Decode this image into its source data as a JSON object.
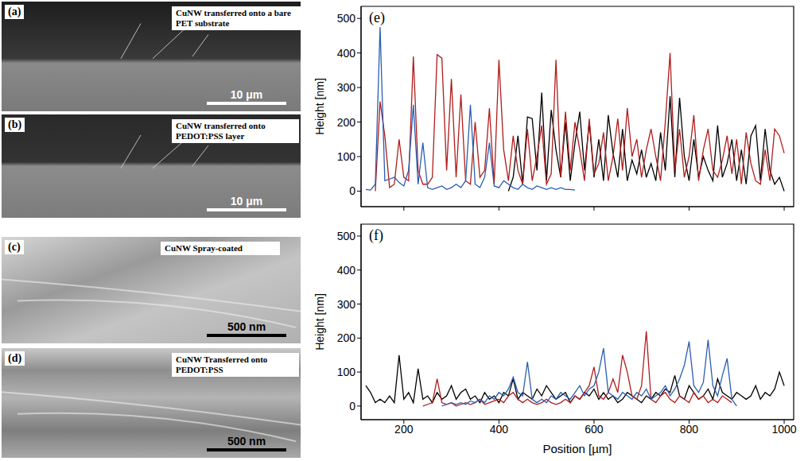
{
  "images": [
    {
      "label": "(a)",
      "caption": "CuNW transferred onto a bare PET substrate",
      "scale_bar": "10 μm"
    },
    {
      "label": "(b)",
      "caption": "CuNW transferred onto PEDOT:PSS layer",
      "scale_bar": "10 μm"
    },
    {
      "label": "(c)",
      "caption": "CuNW Spray-coated",
      "scale_bar": "500 nm"
    },
    {
      "label": "(d)",
      "caption": "CuNW Transferred onto PEDOT:PSS",
      "scale_bar": "500 nm"
    }
  ],
  "chart_data": [
    {
      "type": "line",
      "title": "(e)",
      "y_label": "Height [nm]",
      "grid": false,
      "tick_labels": "y",
      "xlim": [
        110,
        1020
      ],
      "xticks": [
        200,
        400,
        600,
        800,
        1000
      ],
      "ylim": [
        -45,
        535
      ],
      "yticks": [
        0,
        100,
        200,
        300,
        400,
        500
      ],
      "x": [
        120,
        130,
        140,
        150,
        160,
        170,
        180,
        190,
        200,
        210,
        220,
        230,
        240,
        250,
        260,
        270,
        280,
        290,
        300,
        310,
        320,
        330,
        340,
        350,
        360,
        370,
        380,
        390,
        400,
        410,
        420,
        430,
        440,
        450,
        460,
        470,
        480,
        490,
        500,
        510,
        520,
        530,
        540,
        550,
        560,
        570,
        580,
        590,
        600,
        610,
        620,
        630,
        640,
        650,
        660,
        670,
        680,
        690,
        700,
        710,
        720,
        730,
        740,
        750,
        760,
        770,
        780,
        790,
        800,
        810,
        820,
        830,
        840,
        850,
        860,
        870,
        880,
        890,
        900,
        910,
        920,
        930,
        940,
        950,
        960,
        970,
        980,
        990,
        1000
      ],
      "series": [
        {
          "color": "#000000",
          "values": [
            null,
            null,
            null,
            null,
            null,
            null,
            null,
            null,
            null,
            null,
            null,
            null,
            null,
            null,
            null,
            null,
            null,
            null,
            null,
            null,
            null,
            null,
            null,
            null,
            null,
            null,
            null,
            null,
            null,
            null,
            0,
            40,
            160,
            20,
            215,
            210,
            60,
            285,
            30,
            235,
            120,
            40,
            200,
            30,
            140,
            230,
            60,
            200,
            40,
            150,
            30,
            220,
            110,
            40,
            180,
            30,
            90,
            50,
            120,
            40,
            80,
            30,
            170,
            60,
            275,
            40,
            270,
            100,
            30,
            150,
            40,
            100,
            60,
            30,
            190,
            40,
            80,
            150,
            30,
            120,
            20,
            160,
            190,
            30,
            180,
            60,
            20,
            40,
            0
          ]
        },
        {
          "color": "#b01c1c",
          "values": [
            null,
            null,
            0,
            260,
            160,
            10,
            20,
            150,
            40,
            30,
            390,
            60,
            20,
            20,
            40,
            395,
            385,
            60,
            325,
            40,
            280,
            30,
            20,
            200,
            40,
            60,
            240,
            20,
            380,
            120,
            30,
            160,
            60,
            20,
            180,
            30,
            100,
            190,
            20,
            50,
            380,
            40,
            230,
            60,
            200,
            120,
            30,
            210,
            50,
            80,
            170,
            30,
            100,
            210,
            60,
            240,
            100,
            150,
            40,
            120,
            180,
            100,
            30,
            200,
            400,
            60,
            180,
            40,
            100,
            220,
            30,
            120,
            180,
            60,
            40,
            90,
            160,
            50,
            150,
            20,
            170,
            80,
            30,
            20,
            120,
            30,
            180,
            160,
            110
          ]
        },
        {
          "color": "#2a5db0",
          "values": [
            5,
            3,
            20,
            475,
            30,
            35,
            40,
            25,
            15,
            60,
            250,
            20,
            140,
            10,
            5,
            10,
            15,
            5,
            10,
            20,
            10,
            30,
            250,
            20,
            10,
            40,
            140,
            15,
            10,
            30,
            20,
            10,
            5,
            20,
            10,
            5,
            15,
            10,
            5,
            10,
            5,
            10,
            5,
            5,
            3,
            null,
            null,
            null,
            null,
            null,
            null,
            null,
            null,
            null,
            null,
            null,
            null,
            null,
            null,
            null,
            null,
            null,
            null,
            null,
            null,
            null,
            null,
            null,
            null,
            null,
            null,
            null,
            null,
            null,
            null,
            null,
            null,
            null,
            null,
            null,
            null,
            null,
            null,
            null,
            null,
            null,
            null,
            null,
            null
          ]
        }
      ]
    },
    {
      "type": "line",
      "title": "(f)",
      "x_label": "Position [µm]",
      "y_label": "Height [nm]",
      "grid": false,
      "xlim": [
        110,
        1020
      ],
      "xticks": [
        200,
        400,
        600,
        800,
        1000
      ],
      "ylim": [
        -40,
        535
      ],
      "yticks": [
        0,
        100,
        200,
        300,
        400,
        500
      ],
      "x": [
        120,
        130,
        140,
        150,
        160,
        170,
        180,
        190,
        200,
        210,
        220,
        230,
        240,
        250,
        260,
        270,
        280,
        290,
        300,
        310,
        320,
        330,
        340,
        350,
        360,
        370,
        380,
        390,
        400,
        410,
        420,
        430,
        440,
        450,
        460,
        470,
        480,
        490,
        500,
        510,
        520,
        530,
        540,
        550,
        560,
        570,
        580,
        590,
        600,
        610,
        620,
        630,
        640,
        650,
        660,
        670,
        680,
        690,
        700,
        710,
        720,
        730,
        740,
        750,
        760,
        770,
        780,
        790,
        800,
        810,
        820,
        830,
        840,
        850,
        860,
        870,
        880,
        890,
        900,
        910,
        920,
        930,
        940,
        950,
        960,
        970,
        980,
        990,
        1000
      ],
      "series": [
        {
          "color": "#000000",
          "values": [
            60,
            40,
            10,
            20,
            10,
            30,
            10,
            150,
            20,
            40,
            10,
            110,
            20,
            30,
            10,
            40,
            20,
            30,
            60,
            20,
            40,
            50,
            20,
            30,
            10,
            40,
            20,
            30,
            10,
            40,
            30,
            80,
            20,
            40,
            30,
            20,
            50,
            30,
            60,
            40,
            20,
            30,
            40,
            10,
            30,
            20,
            40,
            30,
            50,
            20,
            40,
            20,
            30,
            10,
            20,
            40,
            30,
            20,
            10,
            30,
            20,
            40,
            30,
            50,
            40,
            90,
            30,
            20,
            60,
            40,
            20,
            30,
            50,
            20,
            80,
            40,
            30,
            20,
            40,
            30,
            20,
            30,
            60,
            20,
            40,
            30,
            50,
            100,
            60
          ]
        },
        {
          "color": "#b01c1c",
          "values": [
            null,
            null,
            null,
            null,
            null,
            null,
            null,
            null,
            null,
            null,
            null,
            null,
            0,
            5,
            10,
            80,
            10,
            5,
            10,
            0,
            5,
            10,
            5,
            10,
            20,
            5,
            10,
            15,
            20,
            10,
            30,
            40,
            20,
            10,
            20,
            10,
            5,
            10,
            20,
            10,
            5,
            10,
            20,
            10,
            30,
            20,
            40,
            60,
            115,
            30,
            20,
            40,
            80,
            40,
            150,
            100,
            30,
            20,
            60,
            220,
            20,
            10,
            30,
            40,
            20,
            10,
            30,
            20,
            10,
            40,
            20,
            30,
            10,
            20,
            10,
            30,
            20,
            10,
            null,
            null,
            null,
            null,
            null,
            null,
            null,
            null,
            null,
            null,
            null
          ]
        },
        {
          "color": "#2a5db0",
          "values": [
            null,
            null,
            null,
            null,
            null,
            null,
            null,
            null,
            null,
            null,
            null,
            null,
            null,
            null,
            null,
            null,
            0,
            5,
            10,
            5,
            10,
            5,
            15,
            10,
            20,
            10,
            30,
            20,
            40,
            30,
            50,
            85,
            40,
            30,
            130,
            20,
            10,
            20,
            10,
            30,
            20,
            40,
            30,
            20,
            40,
            60,
            30,
            50,
            60,
            100,
            170,
            40,
            30,
            20,
            40,
            30,
            20,
            40,
            30,
            50,
            20,
            30,
            40,
            60,
            30,
            50,
            80,
            120,
            190,
            60,
            40,
            70,
            195,
            60,
            30,
            90,
            140,
            20,
            0,
            null,
            null,
            null,
            null,
            null,
            null,
            null,
            null,
            null,
            null
          ]
        }
      ]
    }
  ]
}
